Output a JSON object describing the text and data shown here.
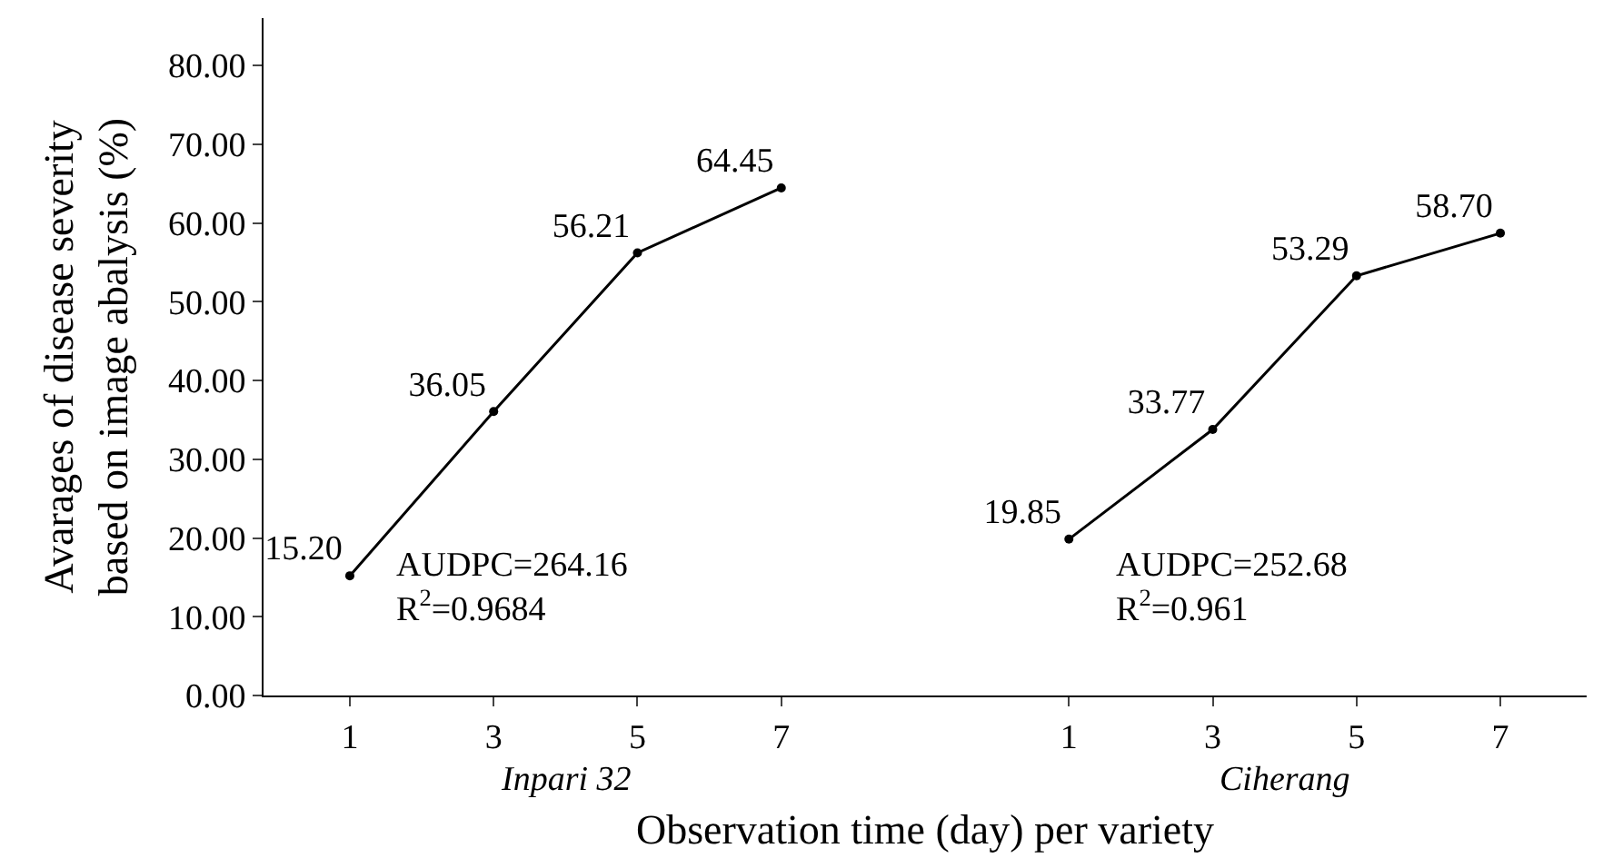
{
  "chart_data": {
    "type": "line",
    "xlabel": "Observation time (day) per variety",
    "ylabel": "Avarages of disease severity\nbased on image abalysis (%)",
    "categories": [
      "1",
      "3",
      "5",
      "7",
      null,
      "1",
      "3",
      "5",
      "7"
    ],
    "series": [
      {
        "color": "#000000",
        "values": [
          15.2,
          36.05,
          56.21,
          64.45,
          null,
          null,
          null,
          null,
          null
        ],
        "value_labels": [
          "15.20",
          "36.05",
          "56.21",
          "64.45",
          null,
          null,
          null,
          null,
          null
        ]
      },
      {
        "color": "#000000",
        "values": [
          null,
          null,
          null,
          null,
          null,
          19.85,
          33.77,
          53.29,
          58.7
        ],
        "value_labels": [
          null,
          null,
          null,
          null,
          null,
          "19.85",
          "33.77",
          "53.29",
          "58.70"
        ]
      }
    ],
    "ylim": [
      0,
      86
    ],
    "yticks": [
      {
        "value": 0,
        "label": "0.00"
      },
      {
        "value": 10,
        "label": "10.00"
      },
      {
        "value": 20,
        "label": "20.00"
      },
      {
        "value": 30,
        "label": "30.00"
      },
      {
        "value": 40,
        "label": "40.00"
      },
      {
        "value": 50,
        "label": "50.00"
      },
      {
        "value": 60,
        "label": "60.00"
      },
      {
        "value": 70,
        "label": "70.00"
      },
      {
        "value": 80,
        "label": "80.00"
      }
    ],
    "marker": "circle",
    "line_style": "solid",
    "annotations": [
      "AUDPC=264.16\nR$^{2}$=0.9684",
      "AUDPC=252.68\nR$^{2}$=0.961",
      "Inpari 32",
      "Ciherang"
    ]
  }
}
